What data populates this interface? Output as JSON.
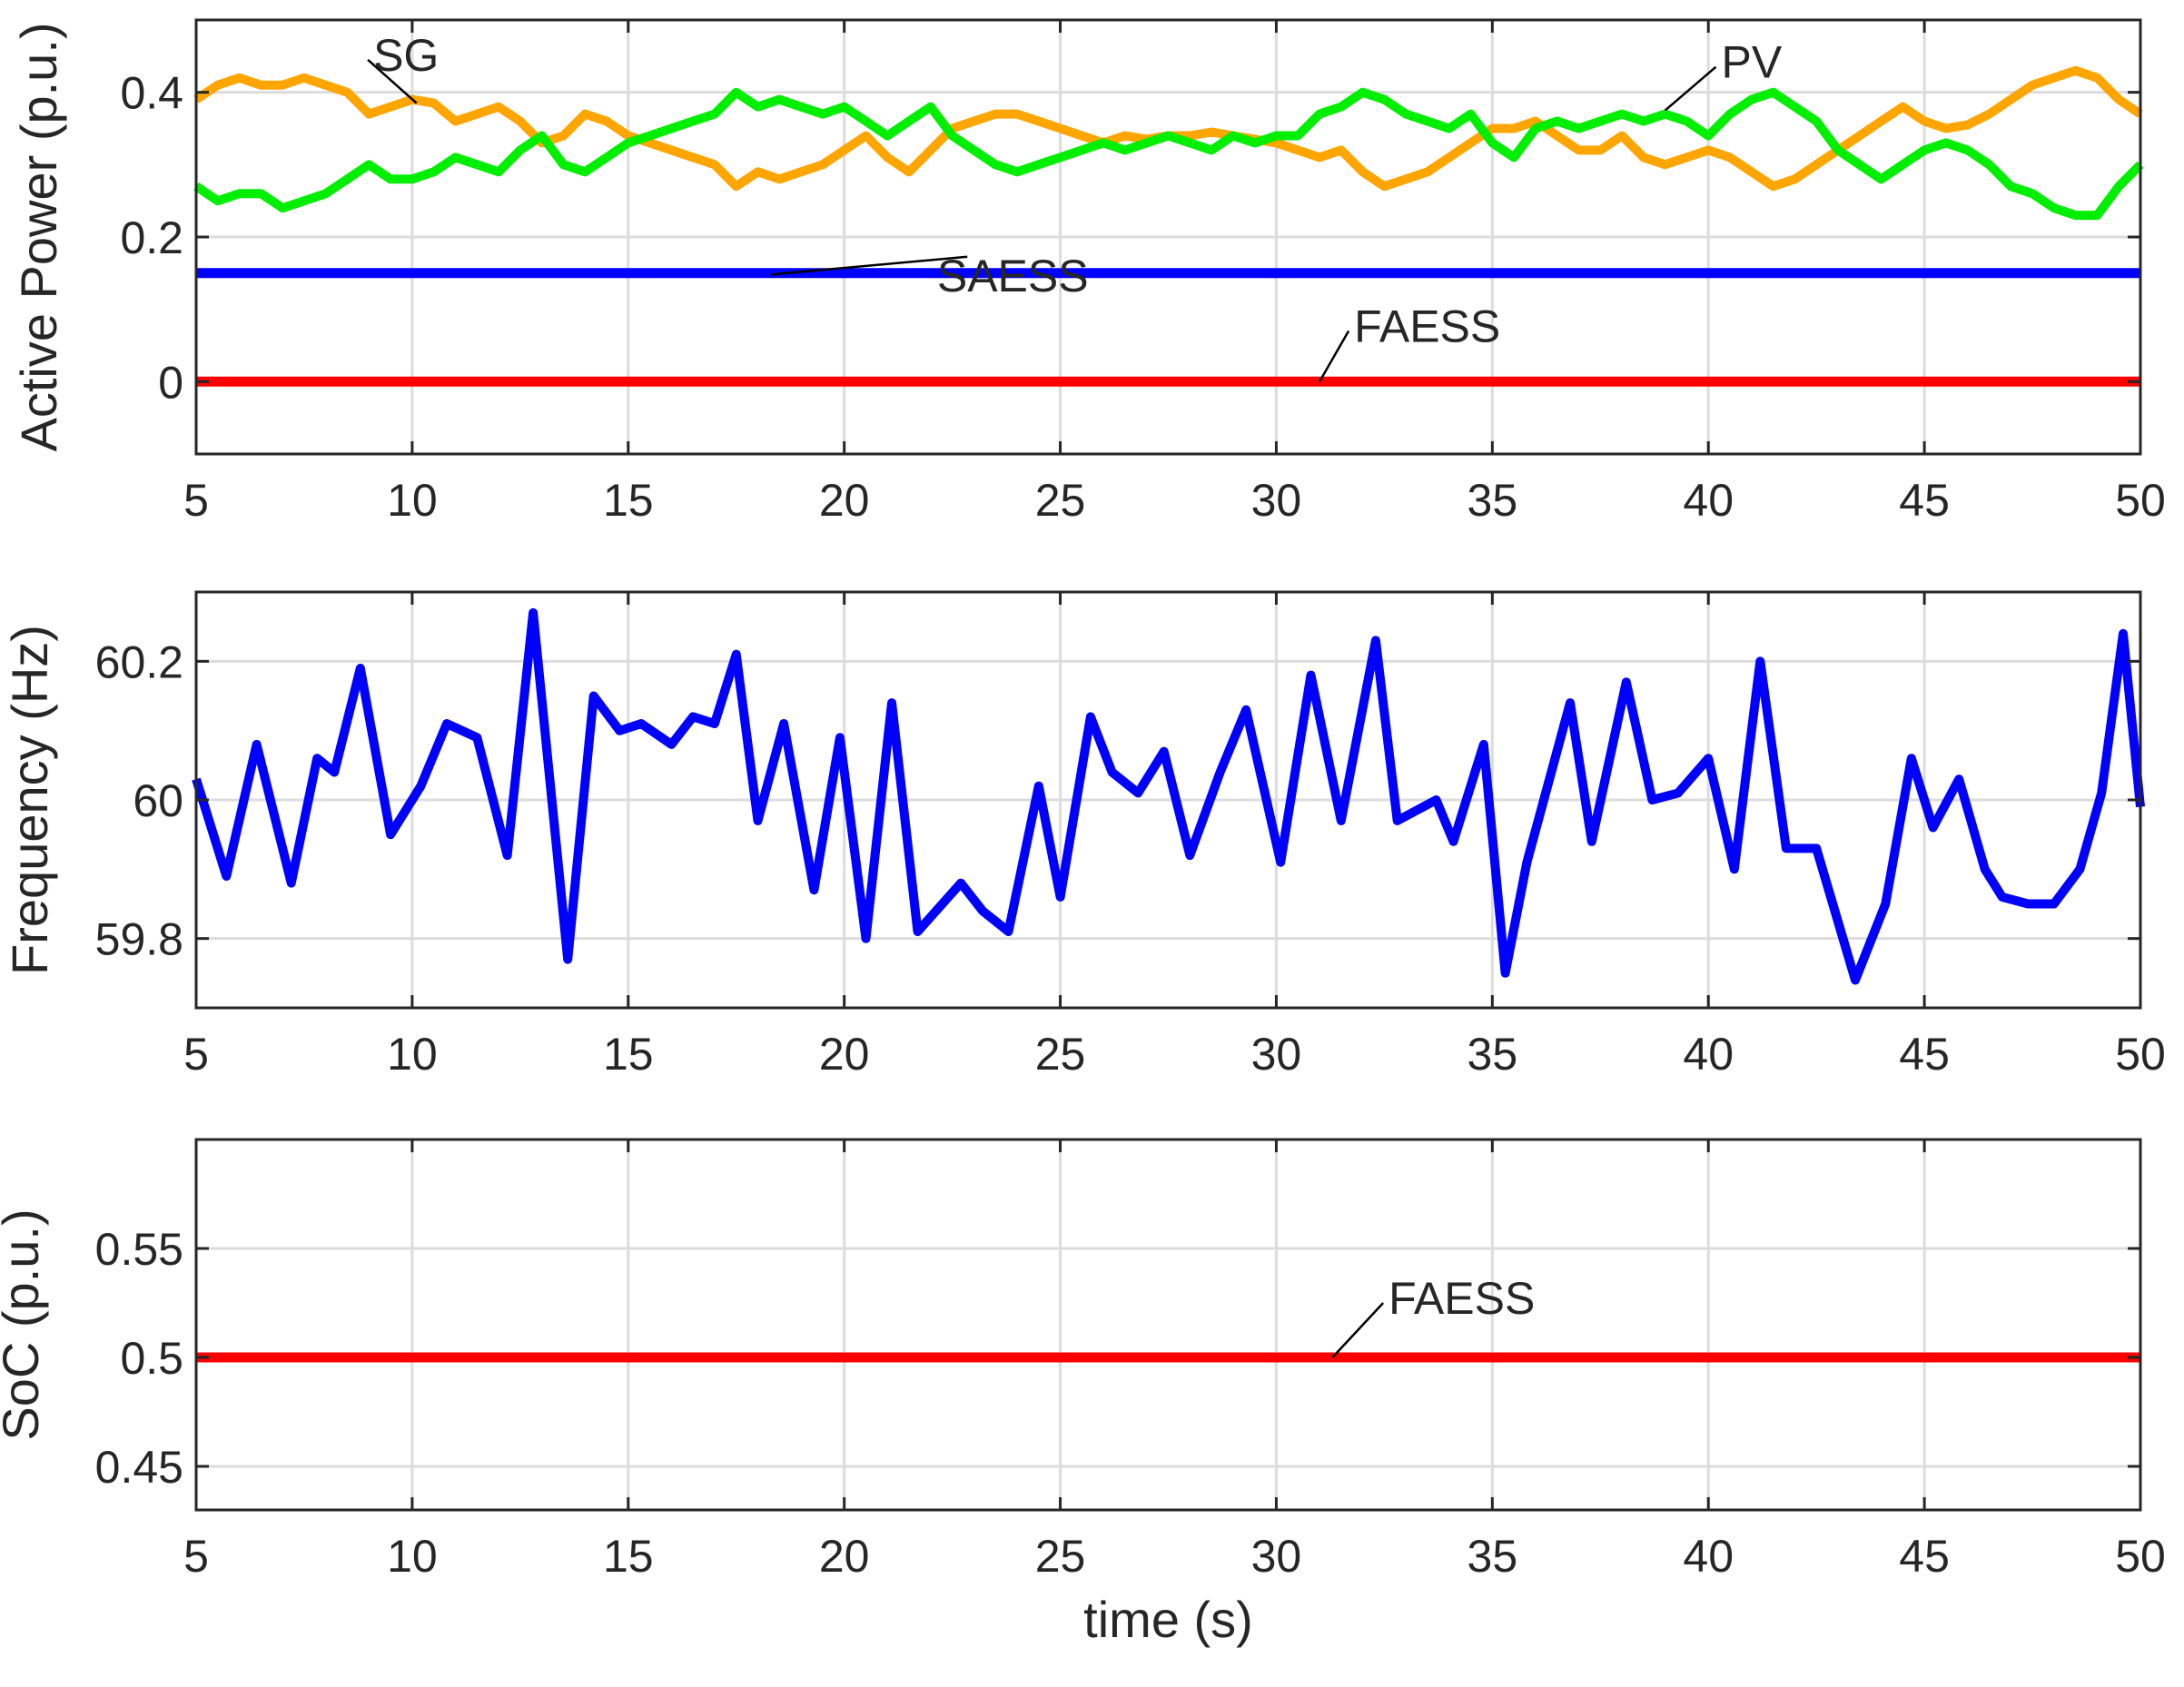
{
  "colors": {
    "SG": "#ffa500",
    "PV": "#00ee00",
    "SAESS": "#0000ff",
    "FAESS": "#ff0000",
    "frequency": "#0000ff",
    "grid": "#dcdcdc",
    "axis": "#262626"
  },
  "chart_data": [
    {
      "type": "line",
      "ylabel": "Active Power (p.u.)",
      "xlabel": "",
      "xlim": [
        5,
        50
      ],
      "ylim": [
        -0.1,
        0.5
      ],
      "xticks": [
        5,
        10,
        15,
        20,
        25,
        30,
        35,
        40,
        45,
        50
      ],
      "yticks": [
        0,
        0.2,
        0.4
      ],
      "ytick_labels": [
        "0",
        "0.2",
        "0.4"
      ],
      "grid": true,
      "series": [
        {
          "name": "SG",
          "x": [
            5,
            5.5,
            6,
            6.5,
            7,
            7.5,
            8,
            8.5,
            9,
            9.5,
            10,
            10.5,
            11,
            11.5,
            12,
            12.5,
            13,
            13.5,
            14,
            14.5,
            15,
            15.5,
            16,
            16.5,
            17,
            17.5,
            18,
            18.5,
            19,
            19.5,
            20,
            20.5,
            21,
            21.5,
            22,
            22.5,
            23,
            23.5,
            24,
            24.5,
            25,
            25.5,
            26,
            26.5,
            27,
            27.5,
            28,
            28.5,
            29,
            29.5,
            30,
            30.5,
            31,
            31.5,
            32,
            32.5,
            33,
            33.5,
            34,
            34.5,
            35,
            35.5,
            36,
            36.5,
            37,
            37.5,
            38,
            38.5,
            39,
            39.5,
            40,
            40.5,
            41,
            41.5,
            42,
            42.5,
            43,
            43.5,
            44,
            44.5,
            45,
            45.5,
            46,
            46.5,
            47,
            47.5,
            48,
            48.5,
            49,
            49.5,
            50
          ],
          "y": [
            0.39,
            0.41,
            0.42,
            0.41,
            0.41,
            0.42,
            0.41,
            0.4,
            0.37,
            0.38,
            0.39,
            0.385,
            0.36,
            0.37,
            0.38,
            0.36,
            0.33,
            0.34,
            0.37,
            0.36,
            0.34,
            0.33,
            0.32,
            0.31,
            0.3,
            0.27,
            0.29,
            0.28,
            0.29,
            0.3,
            0.32,
            0.34,
            0.31,
            0.29,
            0.32,
            0.35,
            0.36,
            0.37,
            0.37,
            0.36,
            0.35,
            0.34,
            0.33,
            0.34,
            0.335,
            0.34,
            0.34,
            0.345,
            0.34,
            0.335,
            0.33,
            0.32,
            0.31,
            0.32,
            0.29,
            0.27,
            0.28,
            0.29,
            0.31,
            0.33,
            0.35,
            0.35,
            0.36,
            0.34,
            0.32,
            0.32,
            0.34,
            0.31,
            0.3,
            0.31,
            0.32,
            0.31,
            0.29,
            0.27,
            0.28,
            0.3,
            0.32,
            0.34,
            0.36,
            0.38,
            0.36,
            0.35,
            0.355,
            0.37,
            0.39,
            0.41,
            0.42,
            0.43,
            0.42,
            0.39,
            0.37
          ]
        },
        {
          "name": "PV",
          "x": [
            5,
            5.5,
            6,
            6.5,
            7,
            7.5,
            8,
            8.5,
            9,
            9.5,
            10,
            10.5,
            11,
            11.5,
            12,
            12.5,
            13,
            13.5,
            14,
            14.5,
            15,
            15.5,
            16,
            16.5,
            17,
            17.5,
            18,
            18.5,
            19,
            19.5,
            20,
            20.5,
            21,
            21.5,
            22,
            22.5,
            23,
            23.5,
            24,
            24.5,
            25,
            25.5,
            26,
            26.5,
            27,
            27.5,
            28,
            28.5,
            29,
            29.5,
            30,
            30.5,
            31,
            31.5,
            32,
            32.5,
            33,
            33.5,
            34,
            34.5,
            35,
            35.5,
            36,
            36.5,
            37,
            37.5,
            38,
            38.5,
            39,
            39.5,
            40,
            40.5,
            41,
            41.5,
            42,
            42.5,
            43,
            43.5,
            44,
            44.5,
            45,
            45.5,
            46,
            46.5,
            47,
            47.5,
            48,
            48.5,
            49,
            49.5,
            50
          ],
          "y": [
            0.27,
            0.25,
            0.26,
            0.26,
            0.24,
            0.25,
            0.26,
            0.28,
            0.3,
            0.28,
            0.28,
            0.29,
            0.31,
            0.3,
            0.29,
            0.32,
            0.34,
            0.3,
            0.29,
            0.31,
            0.33,
            0.34,
            0.35,
            0.36,
            0.37,
            0.4,
            0.38,
            0.39,
            0.38,
            0.37,
            0.38,
            0.36,
            0.34,
            0.36,
            0.38,
            0.34,
            0.32,
            0.3,
            0.29,
            0.3,
            0.31,
            0.32,
            0.33,
            0.32,
            0.33,
            0.34,
            0.33,
            0.32,
            0.34,
            0.33,
            0.34,
            0.34,
            0.37,
            0.38,
            0.4,
            0.39,
            0.37,
            0.36,
            0.35,
            0.37,
            0.33,
            0.31,
            0.35,
            0.36,
            0.35,
            0.36,
            0.37,
            0.36,
            0.37,
            0.36,
            0.34,
            0.37,
            0.39,
            0.4,
            0.38,
            0.36,
            0.32,
            0.3,
            0.28,
            0.3,
            0.32,
            0.33,
            0.32,
            0.3,
            0.27,
            0.26,
            0.24,
            0.23,
            0.23,
            0.27,
            0.3
          ]
        },
        {
          "name": "SAESS",
          "x": [
            5,
            50
          ],
          "y": [
            0.15,
            0.15
          ]
        },
        {
          "name": "FAESS",
          "x": [
            5,
            50
          ],
          "y": [
            0.0,
            0.0
          ]
        }
      ],
      "annotations": [
        {
          "text": "SG",
          "x": 9.1,
          "y": 0.43,
          "tip_x": 10.1,
          "tip_y": 0.385,
          "anchor": "start"
        },
        {
          "text": "PV",
          "x": 40.3,
          "y": 0.42,
          "tip_x": 39.0,
          "tip_y": 0.375,
          "anchor": "start"
        },
        {
          "text": "SAESS",
          "x": 23.9,
          "y": 0.125,
          "tip_x": 18.3,
          "tip_y": 0.148,
          "anchor": "middle"
        },
        {
          "text": "FAESS",
          "x": 31.8,
          "y": 0.055,
          "tip_x": 31.0,
          "tip_y": 0.0,
          "anchor": "start"
        }
      ]
    },
    {
      "type": "line",
      "ylabel": "Frequency (Hz)",
      "xlabel": "",
      "xlim": [
        5,
        50
      ],
      "ylim": [
        59.7,
        60.3
      ],
      "xticks": [
        5,
        10,
        15,
        20,
        25,
        30,
        35,
        40,
        45,
        50
      ],
      "yticks": [
        59.8,
        60,
        60.2
      ],
      "ytick_labels": [
        "59.8",
        "60",
        "60.2"
      ],
      "grid": true,
      "series": [
        {
          "name": "Frequency",
          "x": [
            5,
            5.7,
            6.4,
            7.2,
            7.8,
            8.2,
            8.8,
            9.5,
            10.2,
            10.8,
            11.5,
            12.2,
            12.8,
            13.6,
            14.2,
            14.8,
            15.3,
            16,
            16.5,
            17,
            17.5,
            18,
            18.6,
            19.3,
            19.9,
            20.5,
            21.1,
            21.7,
            22.7,
            23.2,
            23.8,
            24.5,
            25,
            25.7,
            26.2,
            26.8,
            27.4,
            28,
            28.7,
            29.3,
            30.1,
            30.8,
            31.5,
            32.3,
            32.8,
            33.7,
            34.1,
            34.8,
            35.3,
            35.8,
            36.8,
            37.3,
            38.1,
            38.7,
            39.3,
            40,
            40.6,
            41.2,
            41.8,
            42.5,
            43.4,
            44.1,
            44.7,
            45.2,
            45.8,
            46.4,
            46.8,
            47.4,
            48,
            48.6,
            49.1,
            49.6,
            50
          ],
          "y": [
            60.03,
            59.89,
            60.08,
            59.88,
            60.06,
            60.04,
            60.19,
            59.95,
            60.02,
            60.11,
            60.09,
            59.92,
            60.27,
            59.77,
            60.15,
            60.1,
            60.11,
            60.08,
            60.12,
            60.11,
            60.21,
            59.97,
            60.11,
            59.87,
            60.09,
            59.8,
            60.14,
            59.81,
            59.88,
            59.84,
            59.81,
            60.02,
            59.86,
            60.12,
            60.04,
            60.01,
            60.07,
            59.92,
            60.04,
            60.13,
            59.91,
            60.18,
            59.97,
            60.23,
            59.97,
            60.0,
            59.94,
            60.08,
            59.75,
            59.91,
            60.14,
            59.94,
            60.17,
            60.0,
            60.01,
            60.06,
            59.9,
            60.2,
            59.93,
            59.93,
            59.74,
            59.85,
            60.06,
            59.96,
            60.03,
            59.9,
            59.86,
            59.85,
            59.85,
            59.9,
            60.01,
            60.24,
            59.99
          ]
        }
      ],
      "annotations": []
    },
    {
      "type": "line",
      "ylabel": "SoC (p.u.)",
      "xlabel": "time (s)",
      "xlim": [
        5,
        50
      ],
      "ylim": [
        0.43,
        0.6
      ],
      "xticks": [
        5,
        10,
        15,
        20,
        25,
        30,
        35,
        40,
        45,
        50
      ],
      "yticks": [
        0.45,
        0.5,
        0.55
      ],
      "ytick_labels": [
        "0.45",
        "0.5",
        "0.55"
      ],
      "grid": true,
      "series": [
        {
          "name": "FAESS",
          "x": [
            5,
            50
          ],
          "y": [
            0.5,
            0.5
          ]
        }
      ],
      "annotations": [
        {
          "text": "FAESS",
          "x": 32.6,
          "y": 0.52,
          "tip_x": 31.3,
          "tip_y": 0.5,
          "anchor": "start"
        }
      ]
    }
  ]
}
